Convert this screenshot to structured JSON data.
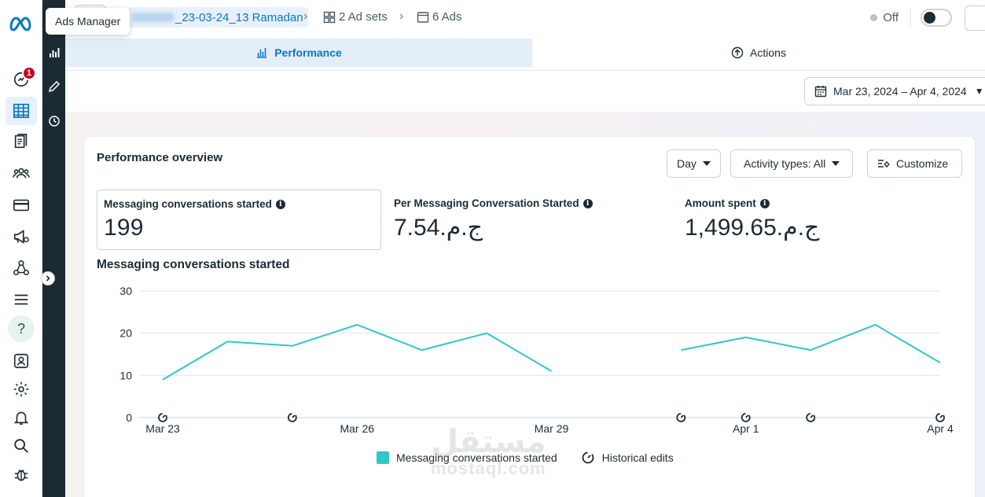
{
  "tooltip": "Ads Manager",
  "rail": {
    "notification_count": "1",
    "items": [
      "meta-logo",
      "notifications",
      "campaigns-table",
      "pages",
      "audiences",
      "billing",
      "ads",
      "business-graph",
      "all-tools-menu",
      "help",
      "account-quality",
      "settings",
      "alerts",
      "search",
      "report-bug"
    ]
  },
  "breadcrumb": {
    "campaign": "_23-03-24_13 Ramadan",
    "adsets": "2 Ad sets",
    "ads": "6 Ads"
  },
  "status": {
    "label": "Off",
    "toggle_on": false
  },
  "tabs": {
    "performance": "Performance",
    "actions": "Actions"
  },
  "date_range": "Mar 23, 2024 – Apr 4, 2024",
  "overview": {
    "title": "Performance overview",
    "day_button": "Day",
    "activity_button": "Activity types: All",
    "customize_button": "Customize"
  },
  "metrics": [
    {
      "label": "Messaging conversations started",
      "value": "199"
    },
    {
      "label": "Per Messaging Conversation Started",
      "value": "7.54.ج.م"
    },
    {
      "label": "Amount spent",
      "value": "1,499.65.ج.م"
    }
  ],
  "chart_title": "Messaging conversations started",
  "legend": {
    "series": "Messaging conversations started",
    "edits": "Historical edits"
  },
  "watermark": {
    "arabic": "مستقل",
    "latin": "mostaql.com"
  },
  "colors": {
    "accent": "#0a78be",
    "series": "#30c7c9",
    "dark_rail": "#1c2b33"
  },
  "chart_data": {
    "type": "line",
    "title": "Messaging conversations started",
    "x": [
      "Mar 23",
      "Mar 24",
      "Mar 25",
      "Mar 26",
      "Mar 27",
      "Mar 28",
      "Mar 29",
      "Mar 30",
      "Mar 31",
      "Apr 1",
      "Apr 2",
      "Apr 3",
      "Apr 4"
    ],
    "tick_labels": [
      "Mar 23",
      "Mar 26",
      "Mar 29",
      "Apr 1",
      "Apr 4"
    ],
    "series": [
      {
        "name": "Messaging conversations started",
        "values": [
          9,
          18,
          17,
          22,
          16,
          20,
          11,
          null,
          16,
          19,
          16,
          22,
          13
        ]
      }
    ],
    "historical_edits": [
      "Mar 23",
      "Mar 25",
      "Mar 31",
      "Apr 1",
      "Apr 2",
      "Apr 4"
    ],
    "yticks": [
      0,
      10,
      20,
      30
    ],
    "ylim": [
      0,
      30
    ],
    "grid": true,
    "legend_position": "bottom"
  }
}
